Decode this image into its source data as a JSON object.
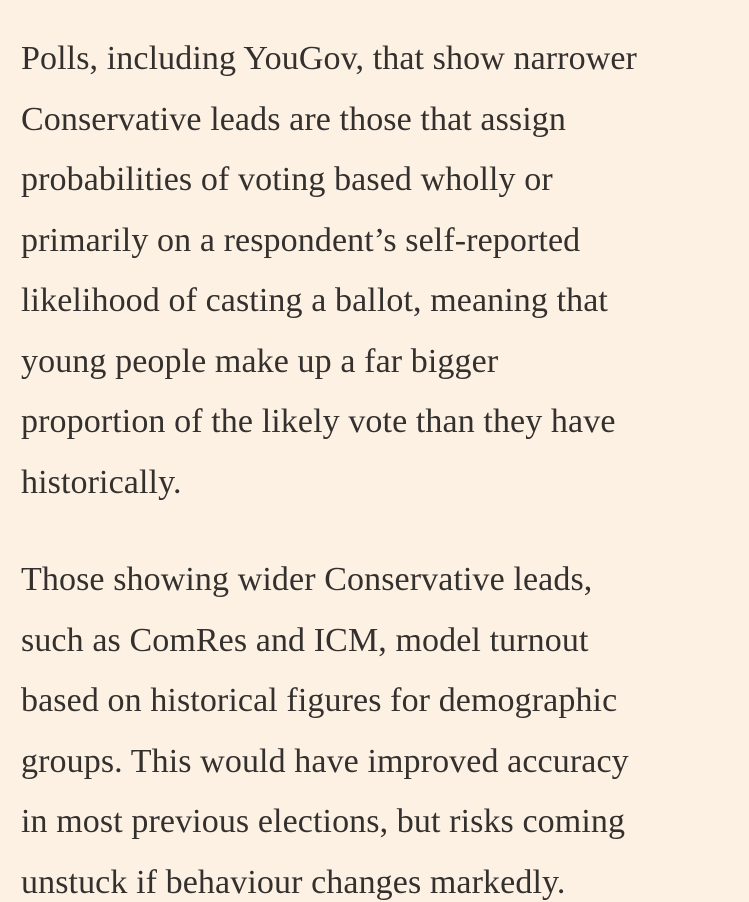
{
  "article": {
    "paragraphs": [
      {
        "lines": [
          "Polls, including YouGov, that show narrower",
          "Conservative leads are those that assign",
          "probabilities of voting based wholly or",
          "primarily on a respondent’s self-reported",
          "likelihood of casting a ballot, meaning that",
          "young people make up a far bigger",
          "proportion of the likely vote than they have",
          "historically."
        ]
      },
      {
        "lines": [
          "Those showing wider Conservative leads,",
          "such as ComRes and ICM, model turnout",
          "based on historical figures for demographic",
          "groups. This would have improved accuracy",
          "in most previous elections, but risks coming",
          "unstuck if behaviour changes markedly."
        ]
      }
    ]
  }
}
